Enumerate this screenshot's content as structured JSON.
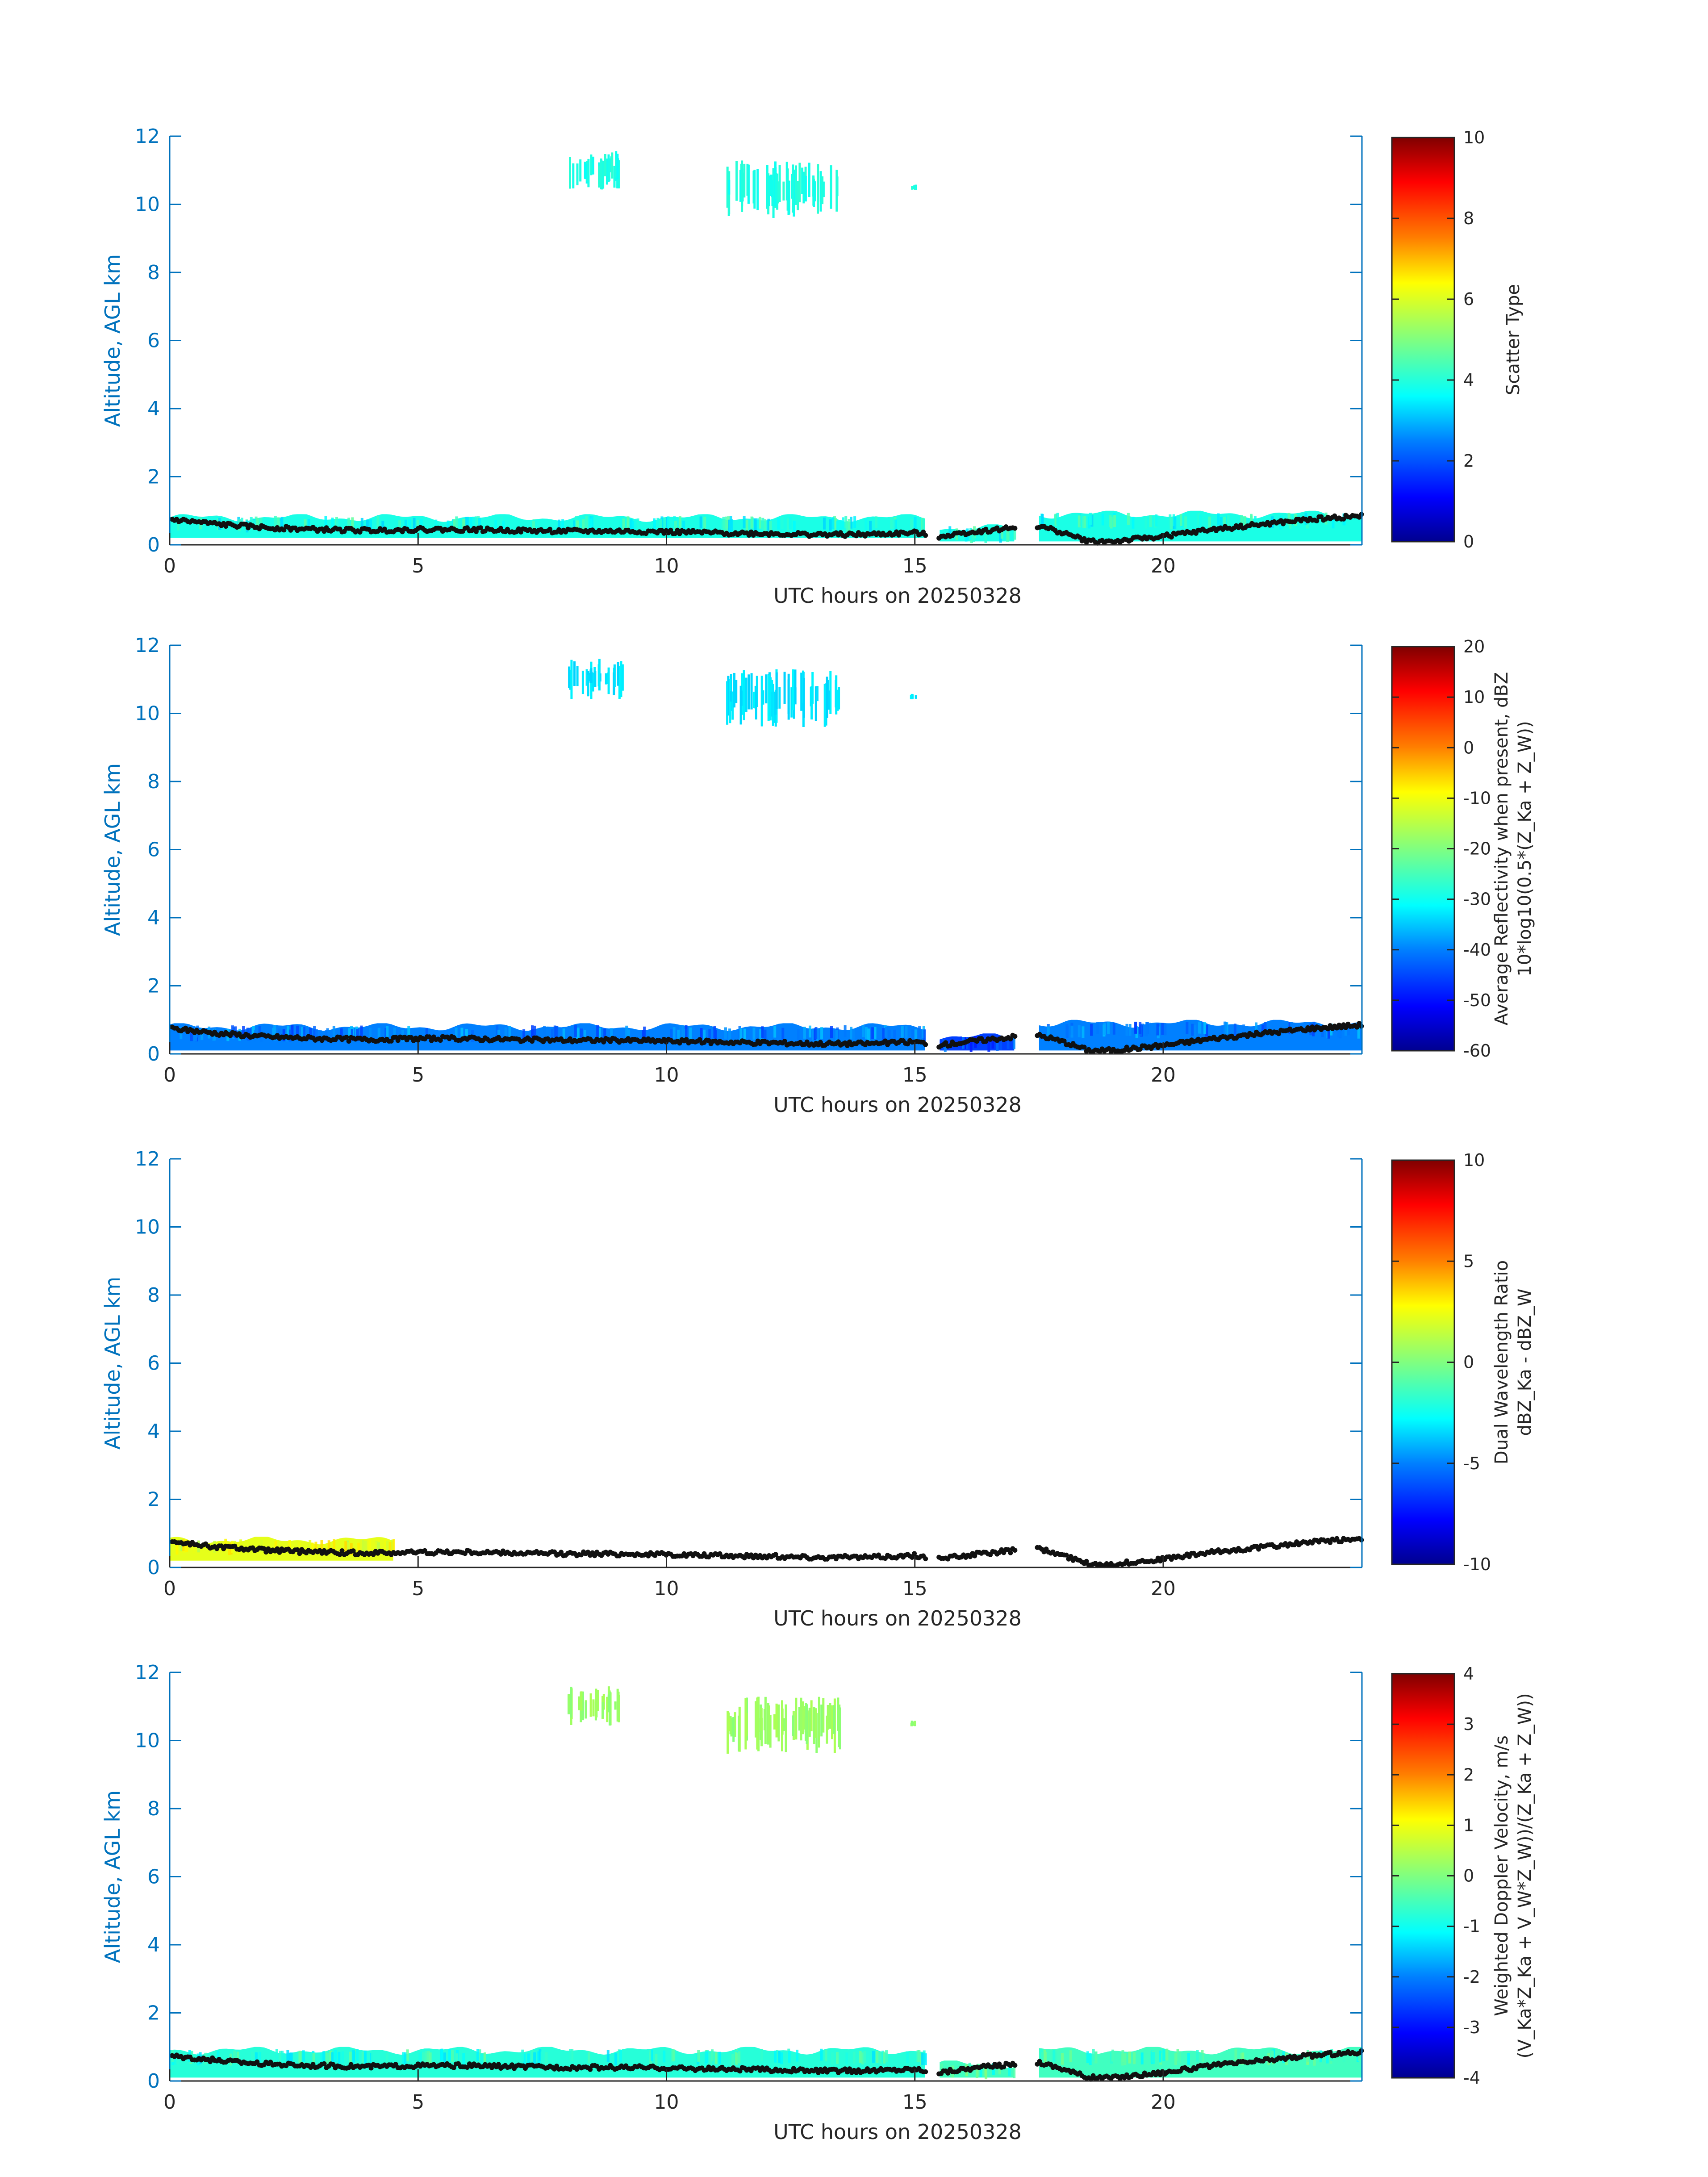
{
  "colors": {
    "axis": "#0072BD",
    "text": "#262626",
    "baseline": "#111111",
    "jet": [
      "#00008F",
      "#0000FF",
      "#0080FF",
      "#00FFFF",
      "#80FF80",
      "#FFFF00",
      "#FF8000",
      "#FF0000",
      "#800000"
    ]
  },
  "chart_data": [
    {
      "type": "heatmap",
      "xlabel": "UTC hours on 20250328",
      "ylabel": "Altitude, AGL km",
      "xlim": [
        0,
        24
      ],
      "ylim": [
        0,
        12
      ],
      "xticks": [
        "0",
        "5",
        "10",
        "15",
        "20"
      ],
      "yticks": [
        "0",
        "2",
        "4",
        "6",
        "8",
        "10",
        "12"
      ],
      "colorbar": {
        "label_lines": [
          "Scatter Type"
        ],
        "range": [
          0,
          10
        ],
        "ticks": [
          "0",
          "2",
          "4",
          "6",
          "8",
          "10"
        ]
      },
      "dominant_value": 4,
      "features": [
        {
          "layer": "low cloud",
          "x": [
            0,
            15.2
          ],
          "y": [
            0.2,
            0.9
          ],
          "value": 4
        },
        {
          "layer": "low cloud",
          "x": [
            15.5,
            17
          ],
          "y": [
            0.1,
            0.6
          ],
          "value": 4
        },
        {
          "layer": "low cloud",
          "x": [
            17.5,
            24
          ],
          "y": [
            0.1,
            1.0
          ],
          "value": 4
        },
        {
          "layer": "cirrus",
          "x": [
            8,
            9.1
          ],
          "y": [
            10.4,
            11.6
          ],
          "value": 4
        },
        {
          "layer": "cirrus",
          "x": [
            11.2,
            13.5
          ],
          "y": [
            9.6,
            11.3
          ],
          "value": 4
        },
        {
          "layer": "cirrus",
          "x": [
            14.9,
            15.0
          ],
          "y": [
            10.4,
            10.6
          ],
          "value": 4
        }
      ]
    },
    {
      "type": "heatmap",
      "xlabel": "UTC hours on 20250328",
      "ylabel": "Altitude, AGL km",
      "xlim": [
        0,
        24
      ],
      "ylim": [
        0,
        12
      ],
      "xticks": [
        "0",
        "5",
        "10",
        "15",
        "20"
      ],
      "yticks": [
        "0",
        "2",
        "4",
        "6",
        "8",
        "10",
        "12"
      ],
      "colorbar": {
        "label_lines": [
          "Average Reflectivity when present, dBZ",
          "10*log10(0.5*(Z_Ka + Z_W))"
        ],
        "range": [
          -60,
          20
        ],
        "ticks": [
          "-60",
          "-50",
          "-40",
          "-30",
          "-20",
          "-10",
          "0",
          "10",
          "20"
        ]
      },
      "dominant_value": -35,
      "features": [
        {
          "layer": "low cloud",
          "x": [
            0,
            15.2
          ],
          "y": [
            0.1,
            0.9
          ],
          "value": -40
        },
        {
          "layer": "low cloud",
          "x": [
            15.5,
            17
          ],
          "y": [
            0.1,
            0.6
          ],
          "value": -45
        },
        {
          "layer": "low cloud",
          "x": [
            17.5,
            24
          ],
          "y": [
            0.1,
            1.0
          ],
          "value": -40
        },
        {
          "layer": "cirrus",
          "x": [
            8,
            9.1
          ],
          "y": [
            10.4,
            11.6
          ],
          "value": -32
        },
        {
          "layer": "cirrus",
          "x": [
            11.2,
            13.5
          ],
          "y": [
            9.6,
            11.3
          ],
          "value": -32
        },
        {
          "layer": "cirrus",
          "x": [
            14.9,
            15.0
          ],
          "y": [
            10.4,
            10.6
          ],
          "value": -32
        }
      ]
    },
    {
      "type": "heatmap",
      "xlabel": "UTC hours on 20250328",
      "ylabel": "Altitude, AGL km",
      "xlim": [
        0,
        24
      ],
      "ylim": [
        0,
        12
      ],
      "xticks": [
        "0",
        "5",
        "10",
        "15",
        "20"
      ],
      "yticks": [
        "0",
        "2",
        "4",
        "6",
        "8",
        "10",
        "12"
      ],
      "colorbar": {
        "label_lines": [
          "Dual Wavelength Ratio",
          "dBZ_Ka - dBZ_W"
        ],
        "range": [
          -10,
          10
        ],
        "ticks": [
          "-10",
          "-5",
          "0",
          "5",
          "10"
        ]
      },
      "dominant_value": 2,
      "features": [
        {
          "layer": "low cloud",
          "x": [
            0,
            4.5
          ],
          "y": [
            0.2,
            0.9
          ],
          "value": 2
        }
      ]
    },
    {
      "type": "heatmap",
      "xlabel": "UTC hours on 20250328",
      "ylabel": "Altitude, AGL km",
      "xlim": [
        0,
        24
      ],
      "ylim": [
        0,
        12
      ],
      "xticks": [
        "0",
        "5",
        "10",
        "15",
        "20"
      ],
      "yticks": [
        "0",
        "2",
        "4",
        "6",
        "8",
        "10",
        "12"
      ],
      "colorbar": {
        "label_lines": [
          "Weighted Doppler Velocity, m/s",
          "(V_Ka*Z_Ka + V_W*Z_W))/(Z_Ka + Z_W))"
        ],
        "range": [
          -4,
          4
        ],
        "ticks": [
          "-4",
          "-3",
          "-2",
          "-1",
          "0",
          "1",
          "2",
          "3",
          "4"
        ]
      },
      "dominant_value": -0.5,
      "features": [
        {
          "layer": "low cloud",
          "x": [
            0,
            15.2
          ],
          "y": [
            0.1,
            1.0
          ],
          "value": -0.7
        },
        {
          "layer": "low cloud",
          "x": [
            15.5,
            17
          ],
          "y": [
            0.1,
            0.6
          ],
          "value": -0.5
        },
        {
          "layer": "low cloud",
          "x": [
            17.5,
            24
          ],
          "y": [
            0.1,
            1.0
          ],
          "value": -0.5
        },
        {
          "layer": "cirrus",
          "x": [
            8,
            9.1
          ],
          "y": [
            10.4,
            11.6
          ],
          "value": 0.2
        },
        {
          "layer": "cirrus",
          "x": [
            11.2,
            13.5
          ],
          "y": [
            9.6,
            11.3
          ],
          "value": 0.2
        },
        {
          "layer": "cirrus",
          "x": [
            14.9,
            15.0
          ],
          "y": [
            10.4,
            10.6
          ],
          "value": 0.2
        }
      ]
    }
  ],
  "cloud_base_km": {
    "hours": [
      0,
      1,
      2,
      3,
      4,
      5,
      6,
      7,
      8,
      9,
      10,
      11,
      12,
      13,
      14,
      15,
      15.5,
      16,
      17,
      17.5,
      18,
      18.5,
      19,
      20,
      21,
      22,
      23,
      24
    ],
    "values": [
      0.75,
      0.6,
      0.5,
      0.45,
      0.42,
      0.45,
      0.45,
      0.42,
      0.4,
      0.4,
      0.38,
      0.35,
      0.33,
      0.3,
      0.3,
      0.35,
      0.25,
      0.35,
      0.5,
      0.55,
      0.35,
      0.1,
      0.1,
      0.25,
      0.45,
      0.6,
      0.75,
      0.85
    ]
  }
}
